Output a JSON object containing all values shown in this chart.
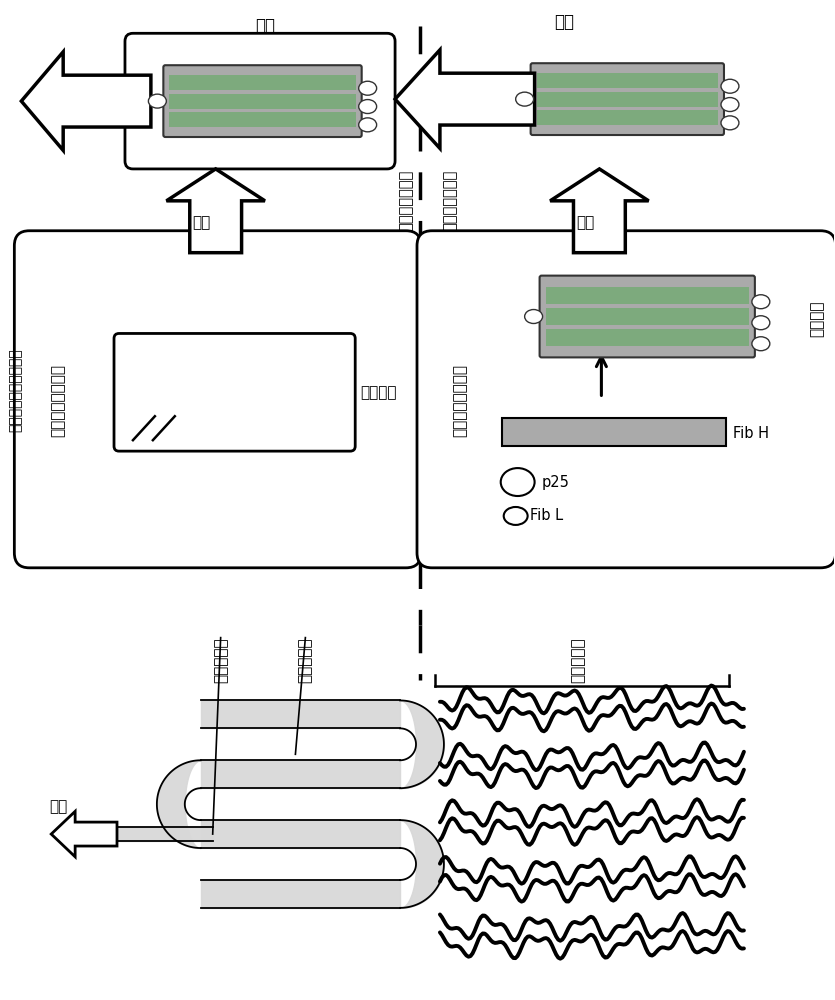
{
  "bg_color": "#ffffff",
  "gray_fill": "#aaaaaa",
  "green_fill": "#7daa7d",
  "label_mid_cell": "中部绹丝腺细胞内",
  "label_post_cell": "后部绹丝腺细胞内",
  "label_mid_lumen": "中部绹丝腺内腔",
  "label_post_lumen": "后部绹丝腺内腔",
  "label_transfer": "转移",
  "label_silk": "绸丝",
  "label_via": "经过前部绹丝腺而吐丝",
  "label_sericin": "丝胶蛋白",
  "label_fibroin": "丝心蛋白",
  "label_p25": "p25",
  "label_fibL": "Fib L",
  "label_fibH": "Fib H",
  "label_anterior": "前部绹丝腺",
  "label_middle": "中部绹丝腺",
  "label_posterior": "后部绹丝腺",
  "label_spinning": "吐丝",
  "label_secretion": "分泌"
}
